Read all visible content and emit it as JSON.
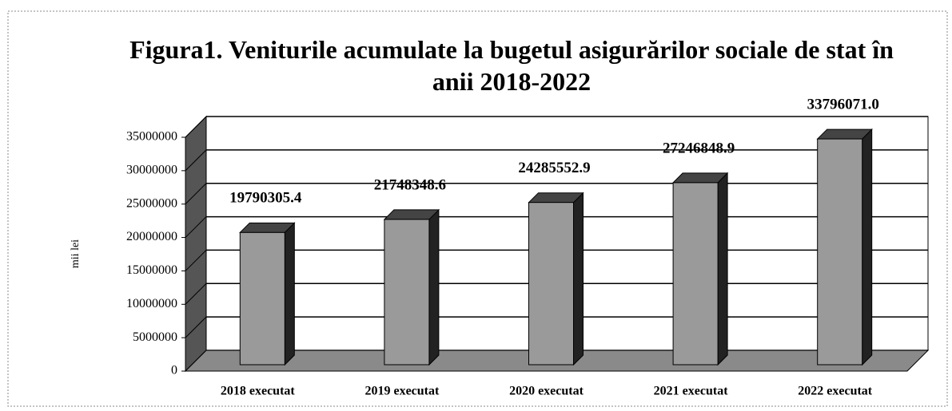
{
  "chart_data": {
    "type": "bar3d",
    "title": "Figura1. Veniturile acumulate la bugetul asigurărilor sociale de stat  în anii 2018-2022",
    "y_axis_label": "mii lei",
    "categories": [
      "2018 executat",
      "2019 executat",
      "2020 executat",
      "2021 executat",
      "2022 executat"
    ],
    "values": [
      19790305.4,
      21748348.6,
      24285552.9,
      27246848.9,
      33796071.0
    ],
    "value_labels": [
      "19790305.4",
      "21748348.6",
      "24285552.9",
      "27246848.9",
      "33796071.0"
    ],
    "color": "#9a9a9a",
    "ylim": [
      0,
      35000000
    ],
    "yticks": [
      0,
      5000000,
      10000000,
      15000000,
      20000000,
      25000000,
      30000000,
      35000000
    ],
    "grid": true
  }
}
